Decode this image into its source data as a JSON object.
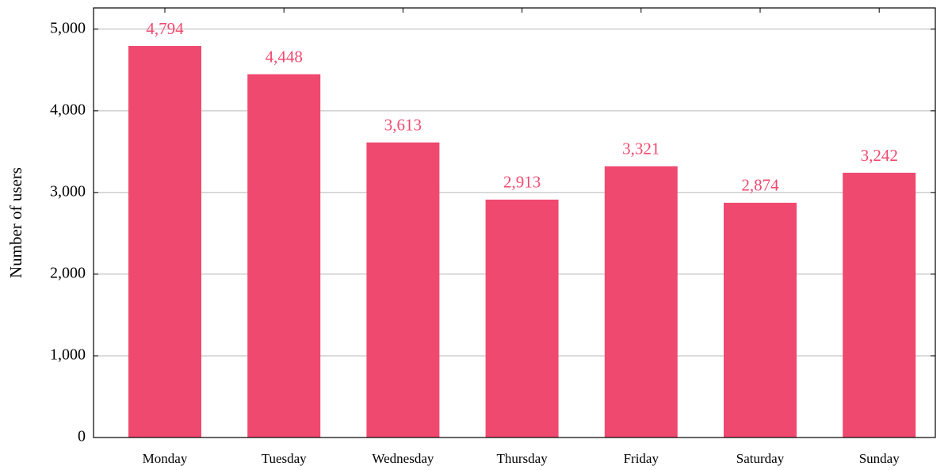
{
  "chart_data": {
    "type": "bar",
    "y_label": "Number of users",
    "categories": [
      "Monday",
      "Tuesday",
      "Wednesday",
      "Thursday",
      "Friday",
      "Saturday",
      "Sunday"
    ],
    "values": [
      4794,
      4448,
      3613,
      2913,
      3321,
      2874,
      3242
    ],
    "value_labels": [
      "4,794",
      "4,448",
      "3,613",
      "2,913",
      "3,321",
      "2,874",
      "3,242"
    ],
    "color": "#f0496f",
    "ylim": [
      0,
      5260
    ],
    "yticks": [
      0,
      {
        "value": 1000,
        "label": "1,000"
      },
      {
        "value": 2000,
        "label": "2,000"
      },
      {
        "value": 3000,
        "label": "3,000"
      },
      {
        "value": 4000,
        "label": "4,000"
      },
      {
        "value": 5000,
        "label": "5,000"
      }
    ],
    "grid": true
  }
}
